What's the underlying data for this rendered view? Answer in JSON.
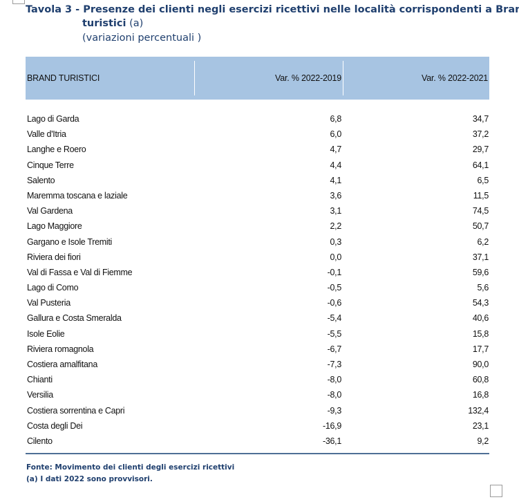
{
  "title": {
    "line1": "Tavola 3 - Presenze dei clienti negli esercizi ricettivi nelle località corrispondenti a Brand",
    "line2_bold": "turistici",
    "line2_rest": " (a)",
    "line3": "(variazioni percentuali )"
  },
  "table": {
    "headers": [
      "BRAND TURISTICI",
      "Var. % 2022-2019",
      "Var. % 2022-2021"
    ],
    "header_color": "#a7c4e2",
    "rows": [
      [
        "Lago di Garda",
        "6,8",
        "34,7"
      ],
      [
        "Valle d'Itria",
        "6,0",
        "37,2"
      ],
      [
        "Langhe e Roero",
        "4,7",
        "29,7"
      ],
      [
        "Cinque Terre",
        "4,4",
        "64,1"
      ],
      [
        "Salento",
        "4,1",
        "6,5"
      ],
      [
        "Maremma toscana e laziale",
        "3,6",
        "11,5"
      ],
      [
        "Val Gardena",
        "3,1",
        "74,5"
      ],
      [
        "Lago Maggiore",
        "2,2",
        "50,7"
      ],
      [
        "Gargano e Isole Tremiti",
        "0,3",
        "6,2"
      ],
      [
        "Riviera dei fiori",
        "0,0",
        "37,1"
      ],
      [
        "Val di Fassa e Val di Fiemme",
        "-0,1",
        "59,6"
      ],
      [
        "Lago di Como",
        "-0,5",
        "5,6"
      ],
      [
        "Val Pusteria",
        "-0,6",
        "54,3"
      ],
      [
        "Gallura e Costa Smeralda",
        "-5,4",
        "40,6"
      ],
      [
        "Isole Eolie",
        "-5,5",
        "15,8"
      ],
      [
        "Riviera romagnola",
        "-6,7",
        "17,7"
      ],
      [
        "Costiera amalfitana",
        "-7,3",
        "90,0"
      ],
      [
        "Chianti",
        "-8,0",
        "60,8"
      ],
      [
        "Versilia",
        "-8,0",
        "16,8"
      ],
      [
        "Costiera sorrentina e Capri",
        "-9,3",
        "132,4"
      ],
      [
        "Costa degli Dei",
        "-16,9",
        "23,1"
      ],
      [
        "Cilento",
        "-36,1",
        "9,2"
      ]
    ]
  },
  "notes": {
    "source": "Fonte: Movimento dei clienti degli esercizi ricettivi",
    "footnote": "(a) I dati 2022 sono provvisori."
  }
}
